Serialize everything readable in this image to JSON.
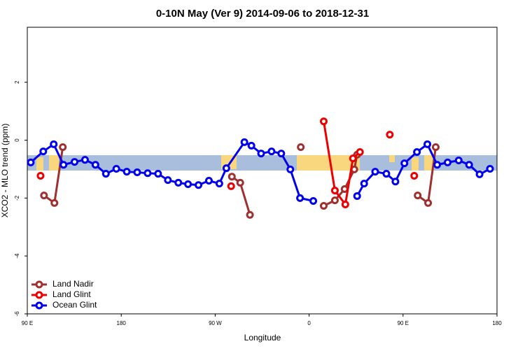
{
  "chart_data": {
    "type": "line",
    "title": "0-10N May (Ver 9)   2014-09-06 to 2018-12-31",
    "x_label": "Longitude",
    "y_label": "XCO2 - MLO trend (ppm)",
    "xlim": [
      90,
      540
    ],
    "ylim": [
      -6,
      3.9
    ],
    "xticks": [
      {
        "value": 90,
        "label": "90 E"
      },
      {
        "value": 180,
        "label": "180"
      },
      {
        "value": 270,
        "label": "90 W"
      },
      {
        "value": 360,
        "label": "0"
      },
      {
        "value": 450,
        "label": "90 E"
      },
      {
        "value": 540,
        "label": "180"
      }
    ],
    "yticks": [
      -6,
      -4,
      -2,
      0,
      2
    ],
    "legend": "lower left",
    "series": [
      {
        "name": "Land Nadir",
        "color": "#a03030",
        "x": [
          106,
          116,
          124,
          200,
          286,
          294,
          303.3,
          330,
          352,
          360,
          374,
          384.7,
          394,
          403.3,
          406,
          430,
          464,
          474,
          481.3
        ],
        "values": [
          -1.91,
          -2.17,
          -0.24,
          null,
          -1.26,
          -1.47,
          -2.58,
          null,
          -0.24,
          null,
          -2.27,
          -2.08,
          -1.69,
          -1.01,
          -0.5,
          null,
          -1.91,
          -2.17,
          -0.24
        ]
      },
      {
        "name": "Land Glint",
        "color": "#ee0000",
        "x": [
          102.7,
          200,
          285.3,
          330,
          374,
          384.7,
          394.7,
          402,
          408.7,
          420,
          437.3,
          450,
          460.7
        ],
        "values": [
          -1.23,
          null,
          -1.59,
          null,
          0.65,
          -1.74,
          -2.22,
          -0.63,
          -0.41,
          null,
          0.19,
          null,
          -1.23
        ]
      },
      {
        "name": "Ocean Glint",
        "color": "#0000ee",
        "x": [
          93.3,
          105.3,
          115.3,
          124.7,
          135.3,
          145.3,
          155.3,
          165.3,
          175.3,
          185.3,
          195.3,
          205.3,
          215.3,
          224.7,
          234.7,
          244,
          254,
          264,
          274,
          280.7,
          298,
          304.7,
          314,
          324,
          333.3,
          342,
          351.3,
          364,
          385,
          406,
          412.7,
          423.3,
          434,
          442.7,
          451.3,
          463.3,
          473.3,
          482.7,
          492.7,
          503.3,
          513.3,
          523.3,
          533.3
        ],
        "values": [
          -0.77,
          -0.39,
          -0.14,
          -0.85,
          -0.75,
          -0.68,
          -0.85,
          -1.16,
          -0.99,
          -1.09,
          -1.11,
          -1.14,
          -1.16,
          -1.38,
          -1.47,
          -1.52,
          -1.55,
          -1.4,
          -1.5,
          -0.97,
          -0.07,
          -0.19,
          -0.46,
          -0.39,
          -0.46,
          -1.01,
          -2.0,
          -2.1,
          null,
          -1.93,
          -1.5,
          -1.09,
          -1.16,
          -1.43,
          -0.8,
          -0.41,
          -0.14,
          -0.85,
          -0.77,
          -0.7,
          -0.85,
          -1.18,
          -0.99
        ]
      }
    ]
  }
}
